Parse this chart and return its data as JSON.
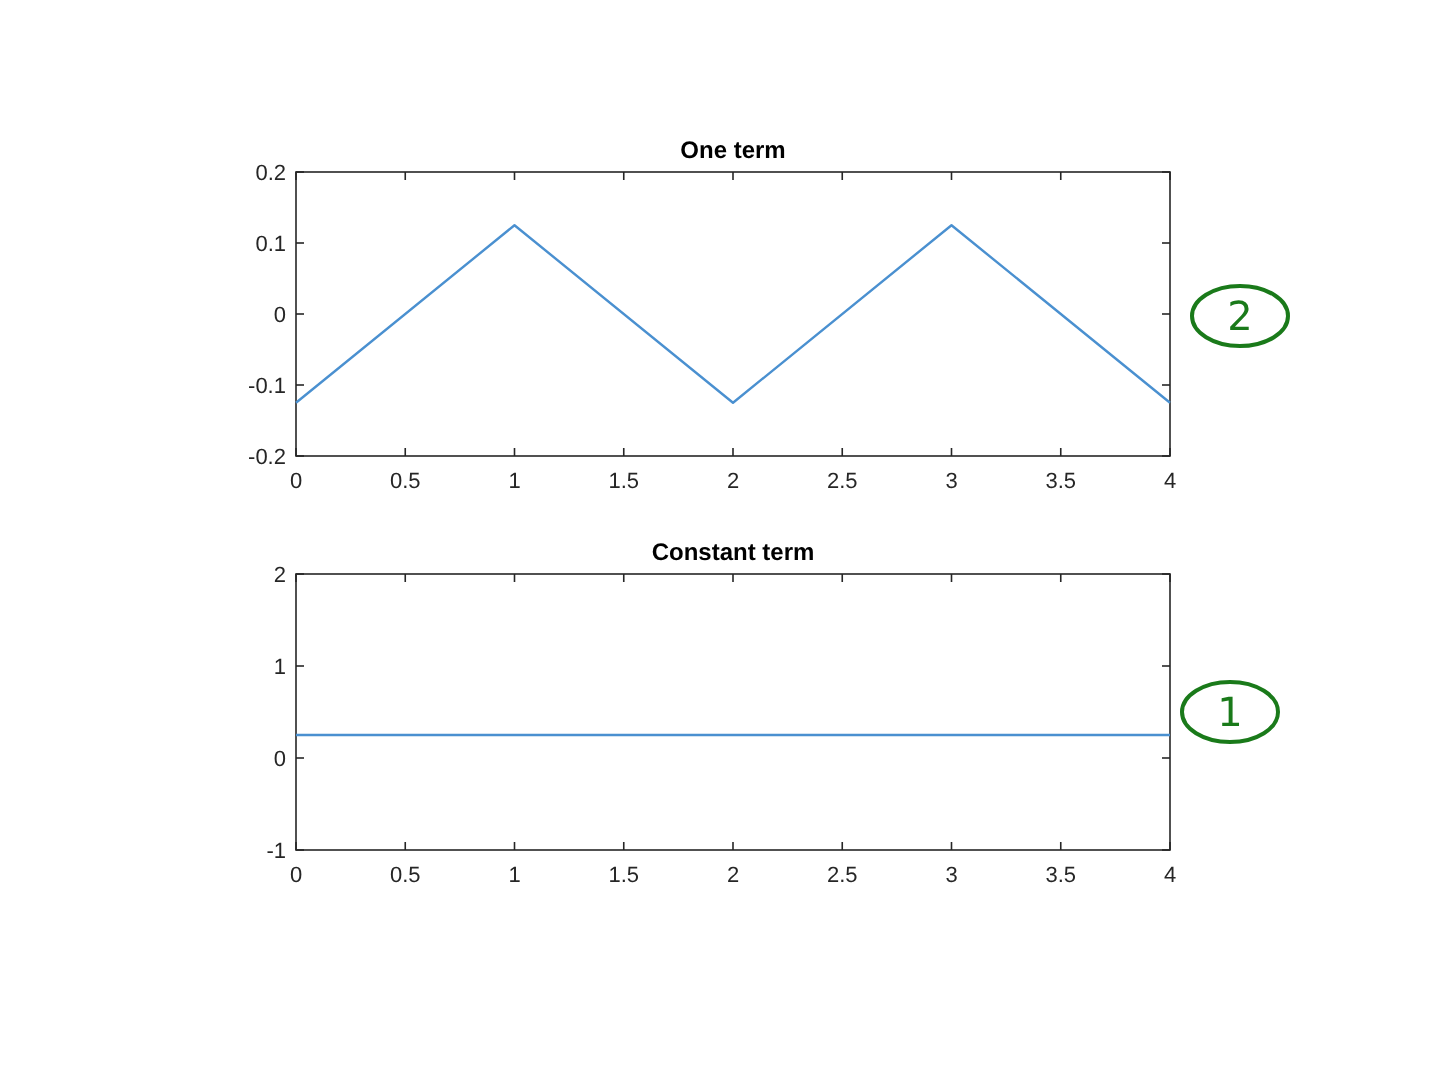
{
  "chart_data": [
    {
      "type": "line",
      "title": "One term",
      "x": [
        0,
        1,
        2,
        3,
        4
      ],
      "values": [
        -0.125,
        0.125,
        -0.125,
        0.125,
        -0.125
      ],
      "color": "#4a90d0",
      "xlim": [
        0,
        4
      ],
      "xticks": [
        0,
        0.5,
        1,
        1.5,
        2,
        2.5,
        3,
        3.5,
        4
      ],
      "ylim": [
        -0.2,
        0.2
      ],
      "yticks": [
        -0.2,
        -0.1,
        0,
        0.1,
        0.2
      ],
      "grid": false,
      "annotations": [
        "2"
      ]
    },
    {
      "type": "line",
      "title": "Constant term",
      "x": [
        0,
        4
      ],
      "values": [
        0.25,
        0.25
      ],
      "color": "#4a90d0",
      "xlim": [
        0,
        4
      ],
      "xticks": [
        0,
        0.5,
        1,
        1.5,
        2,
        2.5,
        3,
        3.5,
        4
      ],
      "ylim": [
        -1,
        2
      ],
      "yticks": [
        -1,
        0,
        1,
        2
      ],
      "grid": false,
      "annotations": [
        "1"
      ]
    }
  ]
}
